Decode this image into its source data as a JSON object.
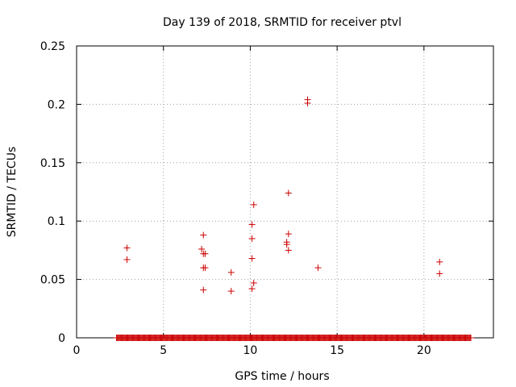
{
  "chart_data": {
    "type": "scatter",
    "title": "Day 139 of 2018, SRMTID for receiver ptvl",
    "xlabel": "GPS time / hours",
    "ylabel": "SRMTID / TECUs",
    "xlim": [
      0,
      24
    ],
    "ylim": [
      0,
      0.25
    ],
    "xticks": [
      0,
      5,
      10,
      15,
      20
    ],
    "xtick_labels": [
      "0",
      "5",
      "10",
      "15",
      "20"
    ],
    "yticks": [
      0,
      0.05,
      0.1,
      0.15,
      0.2,
      0.25
    ],
    "ytick_labels": [
      "0",
      "0.05",
      "0.1",
      "0.15",
      "0.2",
      "0.25"
    ],
    "grid": true,
    "marker": "+",
    "color": "#cc0000",
    "points": [
      {
        "x": 2.9,
        "y": 0.077
      },
      {
        "x": 2.9,
        "y": 0.067
      },
      {
        "x": 7.2,
        "y": 0.076
      },
      {
        "x": 7.3,
        "y": 0.088
      },
      {
        "x": 7.3,
        "y": 0.072
      },
      {
        "x": 7.4,
        "y": 0.072
      },
      {
        "x": 7.3,
        "y": 0.06
      },
      {
        "x": 7.4,
        "y": 0.06
      },
      {
        "x": 7.3,
        "y": 0.041
      },
      {
        "x": 8.9,
        "y": 0.056
      },
      {
        "x": 8.9,
        "y": 0.04
      },
      {
        "x": 10.2,
        "y": 0.114
      },
      {
        "x": 10.1,
        "y": 0.097
      },
      {
        "x": 10.1,
        "y": 0.085
      },
      {
        "x": 10.1,
        "y": 0.068
      },
      {
        "x": 10.2,
        "y": 0.047
      },
      {
        "x": 10.1,
        "y": 0.042
      },
      {
        "x": 12.2,
        "y": 0.124
      },
      {
        "x": 12.2,
        "y": 0.089
      },
      {
        "x": 12.1,
        "y": 0.082
      },
      {
        "x": 12.1,
        "y": 0.08
      },
      {
        "x": 12.2,
        "y": 0.075
      },
      {
        "x": 13.3,
        "y": 0.204
      },
      {
        "x": 13.3,
        "y": 0.201
      },
      {
        "x": 13.9,
        "y": 0.06
      },
      {
        "x": 20.9,
        "y": 0.065
      },
      {
        "x": 20.9,
        "y": 0.055
      }
    ],
    "zero_series": {
      "x_start": 2.3,
      "x_end": 22.7,
      "step": 0.05,
      "y": 0
    }
  }
}
